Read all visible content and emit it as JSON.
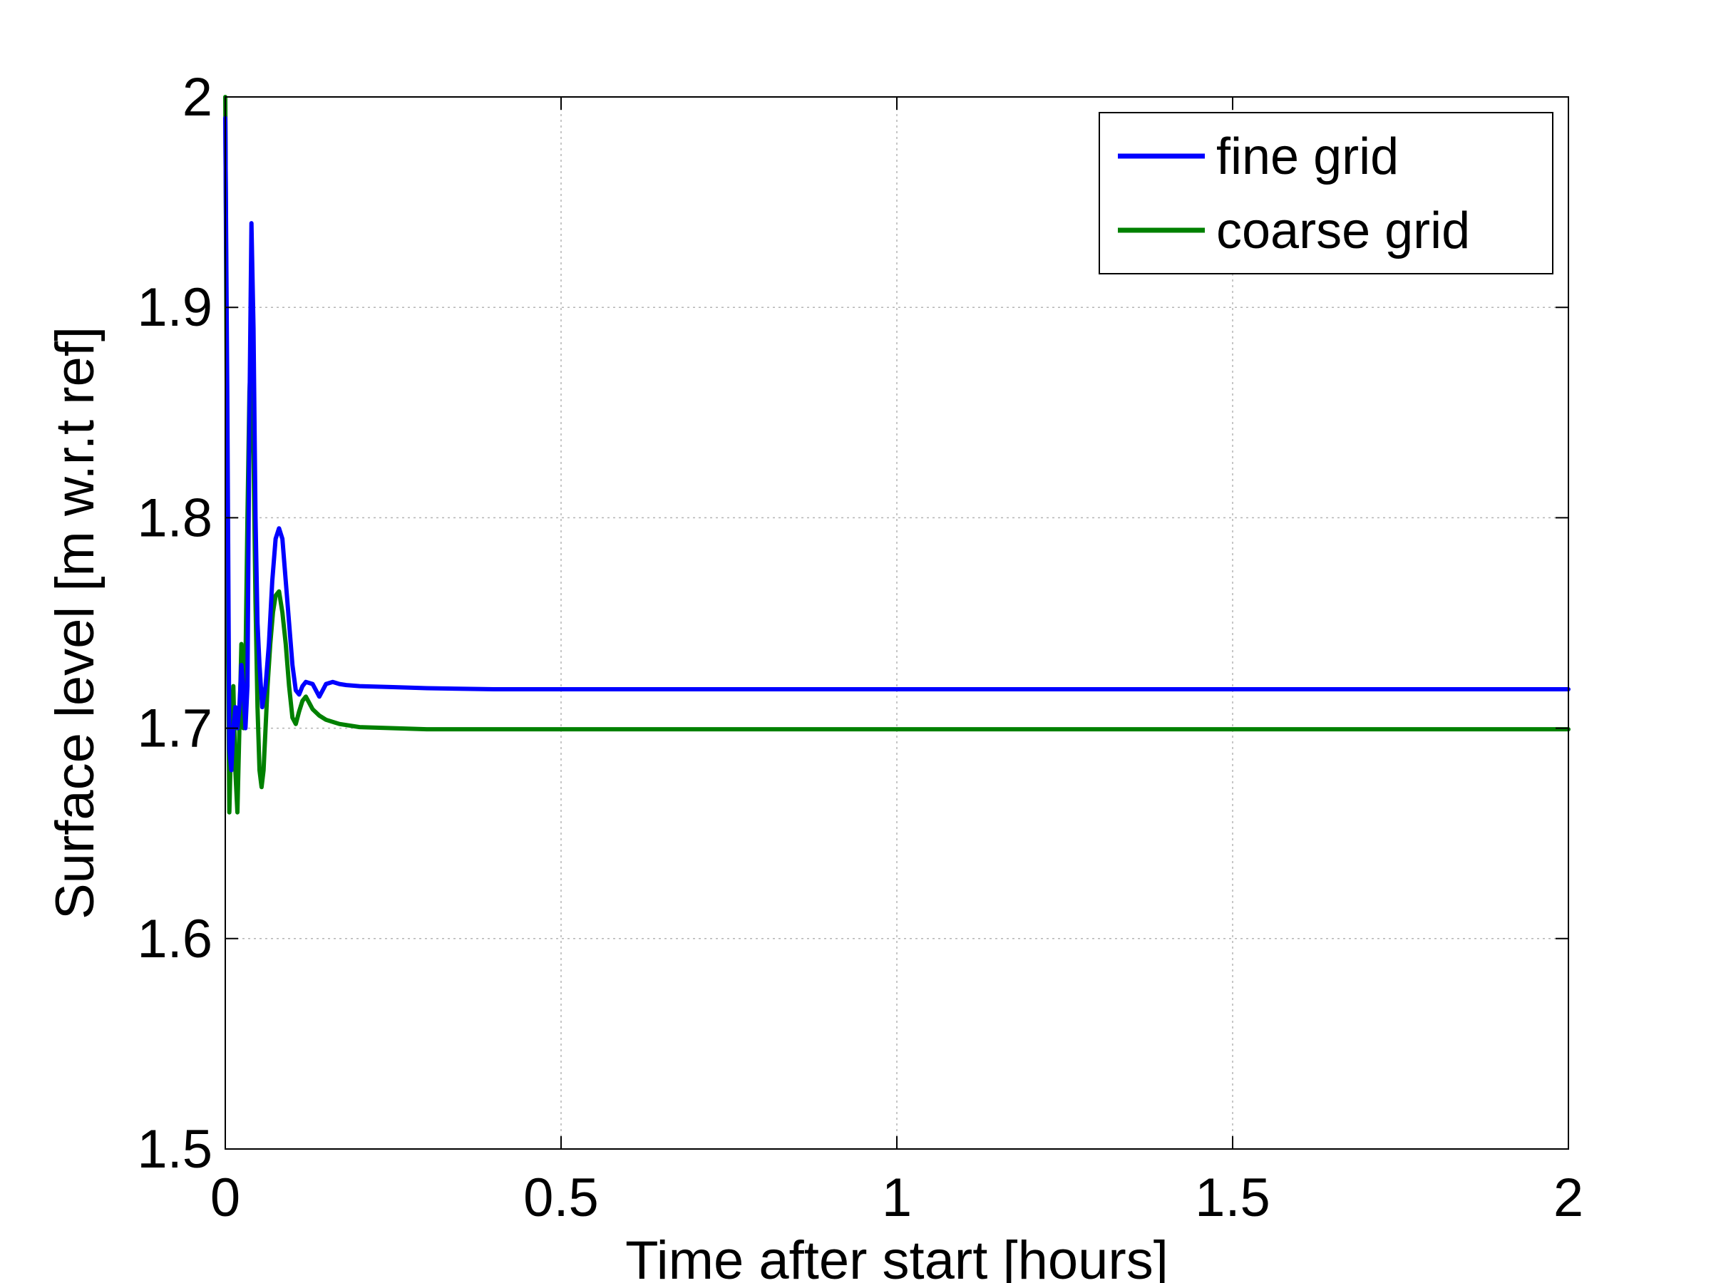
{
  "chart_data": {
    "type": "line",
    "title": "",
    "xlabel": "Time after start [hours]",
    "ylabel": "Surface level [m w.r.t ref]",
    "xlim": [
      0,
      2
    ],
    "ylim": [
      1.5,
      2
    ],
    "xticks": [
      0,
      0.5,
      1,
      1.5,
      2
    ],
    "xtick_labels": [
      "0",
      "0.5",
      "1",
      "1.5",
      "2"
    ],
    "yticks": [
      1.5,
      1.6,
      1.7,
      1.8,
      1.9,
      2
    ],
    "ytick_labels": [
      "1.5",
      "1.6",
      "1.7",
      "1.8",
      "1.9",
      "2"
    ],
    "grid": true,
    "legend_position": "top-right",
    "series": [
      {
        "name": "fine grid",
        "color": "#0000ff",
        "x": [
          0,
          0.003,
          0.006,
          0.009,
          0.012,
          0.015,
          0.018,
          0.021,
          0.024,
          0.027,
          0.03,
          0.033,
          0.036,
          0.039,
          0.042,
          0.045,
          0.048,
          0.051,
          0.055,
          0.06,
          0.065,
          0.07,
          0.075,
          0.08,
          0.085,
          0.09,
          0.095,
          0.1,
          0.105,
          0.11,
          0.115,
          0.12,
          0.13,
          0.14,
          0.145,
          0.15,
          0.16,
          0.17,
          0.18,
          0.2,
          0.25,
          0.3,
          0.4,
          0.6,
          1.0,
          1.5,
          2.0
        ],
        "y": [
          1.99,
          1.86,
          1.69,
          1.68,
          1.7,
          1.71,
          1.7,
          1.71,
          1.73,
          1.72,
          1.7,
          1.72,
          1.85,
          1.94,
          1.89,
          1.8,
          1.75,
          1.73,
          1.71,
          1.72,
          1.74,
          1.77,
          1.79,
          1.795,
          1.79,
          1.77,
          1.75,
          1.73,
          1.718,
          1.716,
          1.72,
          1.722,
          1.721,
          1.715,
          1.718,
          1.721,
          1.722,
          1.721,
          1.7205,
          1.72,
          1.7195,
          1.719,
          1.7185,
          1.7185,
          1.7185,
          1.7185,
          1.7185
        ]
      },
      {
        "name": "coarse grid",
        "color": "#008000",
        "x": [
          0,
          0.002,
          0.004,
          0.006,
          0.009,
          0.012,
          0.015,
          0.018,
          0.021,
          0.024,
          0.027,
          0.03,
          0.033,
          0.036,
          0.039,
          0.042,
          0.045,
          0.048,
          0.051,
          0.054,
          0.057,
          0.06,
          0.063,
          0.067,
          0.071,
          0.075,
          0.08,
          0.085,
          0.09,
          0.095,
          0.1,
          0.105,
          0.11,
          0.115,
          0.12,
          0.125,
          0.13,
          0.14,
          0.15,
          0.17,
          0.2,
          0.25,
          0.3,
          0.4,
          0.6,
          1.0,
          1.5,
          2.0
        ],
        "y": [
          2.0,
          1.87,
          1.74,
          1.66,
          1.7,
          1.72,
          1.68,
          1.66,
          1.7,
          1.74,
          1.7,
          1.73,
          1.8,
          1.86,
          1.88,
          1.83,
          1.76,
          1.71,
          1.68,
          1.672,
          1.68,
          1.7,
          1.72,
          1.74,
          1.755,
          1.763,
          1.765,
          1.755,
          1.74,
          1.72,
          1.705,
          1.702,
          1.708,
          1.713,
          1.715,
          1.712,
          1.709,
          1.706,
          1.704,
          1.702,
          1.7005,
          1.7,
          1.6995,
          1.6995,
          1.6995,
          1.6995,
          1.6995,
          1.6995
        ]
      }
    ]
  }
}
